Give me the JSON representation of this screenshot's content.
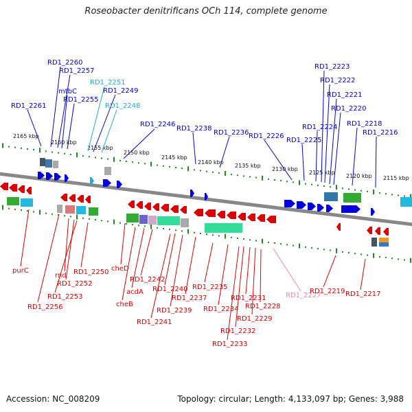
{
  "title": "Roseobacter denitrificans OCh 114, complete genome",
  "accession": "Accession: NC_008209",
  "summary": "Topology: circular; Length: 4,133,097 bp; Genes: 3,988",
  "colors": {
    "forward": "#0000dd",
    "reverse": "#dd0000",
    "light_blue": "#22aadd",
    "pink": "#ee88aa",
    "backbone": "#888888",
    "tick": "#228822"
  },
  "kbp_labels": [
    "2165 kbp",
    "2160 kbp",
    "2155 kbp",
    "2150 kbp",
    "2145 kbp",
    "2140 kbp",
    "2135 kbp",
    "2130 kbp",
    "2125 kbp",
    "2120 kbp",
    "2115 kbp"
  ],
  "top_labels": [
    "RD1_2260",
    "RD1_2257",
    "mtbC",
    "RD1_2255",
    "RD1_2261",
    "RD1_2251",
    "RD1_2249",
    "RD1_2248",
    "RD1_2246",
    "RD1_2238",
    "RD1_2236",
    "RD1_2226",
    "RD1_2225",
    "RD1_2224",
    "RD1_2223",
    "RD1_2222",
    "RD1_2221",
    "RD1_2220",
    "RD1_2218",
    "RD1_2216"
  ],
  "bottom_labels": [
    "purC",
    "rnd",
    "RD1_2252",
    "RD1_2253",
    "RD1_2256",
    "RD1_2250",
    "cheD",
    "acdA",
    "cheB",
    "RD1_2242",
    "RD1_2241",
    "RD1_2240",
    "RD1_2239",
    "RD1_2237",
    "RD1_2235",
    "RD1_2234",
    "RD1_2233",
    "RD1_2232",
    "RD1_2231",
    "RD1_2229",
    "RD1_2228",
    "RD1_2227",
    "RD1_2219",
    "RD1_2217"
  ]
}
